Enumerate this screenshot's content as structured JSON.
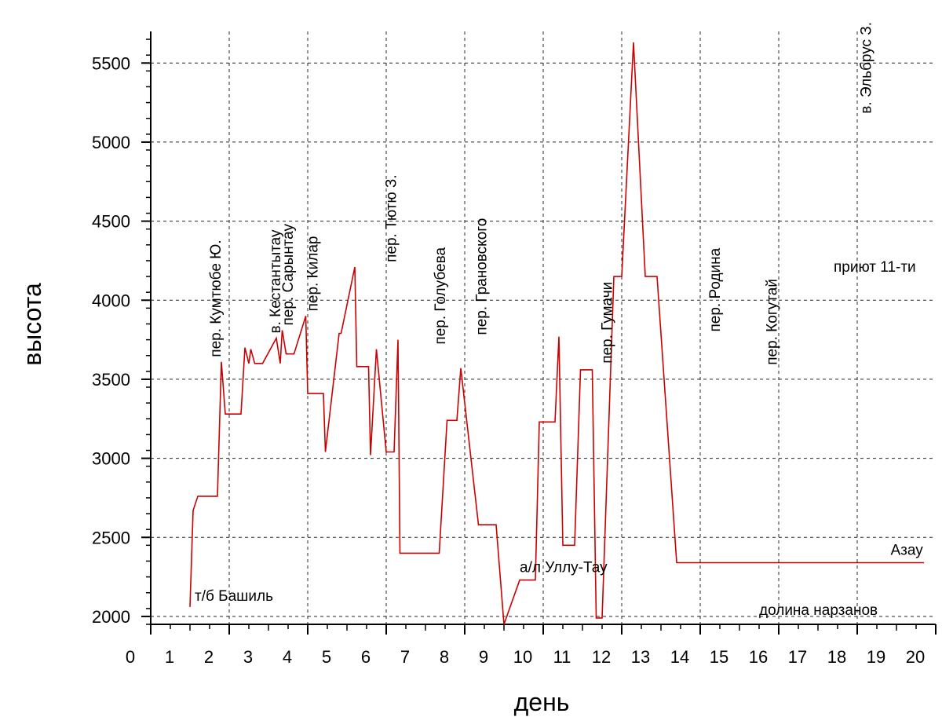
{
  "chart_data": {
    "type": "line",
    "xlabel": "день",
    "ylabel": "высота",
    "xlim": [
      0,
      20
    ],
    "ylim": [
      1950,
      5700
    ],
    "xticks": [
      "0",
      "1",
      "2",
      "3",
      "4",
      "5",
      "6",
      "7",
      "8",
      "9",
      "10",
      "11",
      "12",
      "13",
      "14",
      "15",
      "16",
      "17",
      "18",
      "19",
      "20"
    ],
    "yticks": [
      "2000",
      "2500",
      "3000",
      "3500",
      "4000",
      "4500",
      "5000",
      "5500"
    ],
    "grid": true,
    "line_color": "#cc0000",
    "series": [
      {
        "x": [
          1.0,
          1.08,
          1.2,
          1.7,
          1.8,
          1.9,
          2.3,
          2.4,
          2.5,
          2.55,
          2.65,
          2.7,
          2.75,
          2.85,
          3.2,
          3.3,
          3.35,
          3.45,
          3.55,
          3.65,
          3.95,
          4.0,
          4.1,
          4.4,
          4.45,
          4.8,
          4.85,
          5.2,
          5.25,
          5.55,
          5.6,
          5.75,
          6.0,
          6.15,
          6.2,
          6.3,
          6.35,
          6.7,
          6.8,
          6.85,
          7.35,
          7.55,
          7.8,
          7.9,
          8.35,
          8.8,
          9.0,
          9.4,
          9.8,
          9.9,
          10.3,
          10.4,
          10.5,
          10.8,
          10.95,
          11.25,
          11.35,
          11.5,
          11.8,
          12.0,
          12.3,
          12.6,
          12.9,
          13.4,
          14.0,
          14.2,
          14.3,
          14.55,
          14.6,
          15.0,
          15.1,
          15.5,
          15.75,
          16.0,
          16.05,
          16.25,
          16.4,
          16.5,
          16.75,
          17.1,
          17.6,
          17.75,
          18.05,
          18.2,
          18.6,
          19.05,
          19.35,
          19.5,
          19.7
        ],
        "y": [
          2060,
          2670,
          2760,
          2760,
          3610,
          3280,
          3280,
          3700,
          3600,
          3690,
          3600,
          3600,
          3600,
          3600,
          3760,
          3600,
          3810,
          3660,
          3660,
          3660,
          3900,
          3410,
          3410,
          3410,
          3040,
          3790,
          3790,
          4210,
          3580,
          3580,
          3020,
          3690,
          3040,
          3040,
          3040,
          3750,
          2400,
          2400,
          2400,
          2400,
          2400,
          3240,
          3240,
          3570,
          2580,
          2580,
          1950,
          2230,
          2230,
          3230,
          3230,
          3770,
          2450,
          2450,
          3560,
          3560,
          1990,
          1990,
          4150,
          4150,
          5630,
          4150,
          4150,
          2340,
          2340,
          2340,
          2340,
          2340,
          2340,
          2340,
          2340,
          2340,
          2340,
          2340,
          2340,
          2340,
          2340,
          2340,
          2340,
          2340,
          2340,
          2340,
          2340,
          2340,
          2340,
          2340,
          2340,
          2340,
          2340
        ]
      }
    ],
    "annotations": [
      {
        "text": "т/б Башиль",
        "x": 1.12,
        "y": 2100,
        "rotation": 0
      },
      {
        "text": "пер. Кумтюбе Ю.",
        "x": 1.78,
        "y": 3640,
        "rotation": -90
      },
      {
        "text": "в. Кестантытау",
        "x": 3.3,
        "y": 3790,
        "rotation": -90
      },
      {
        "text": "пер. Сарынтау",
        "x": 3.62,
        "y": 3840,
        "rotation": -90
      },
      {
        "text": "пер. Килар",
        "x": 4.25,
        "y": 3930,
        "rotation": -90
      },
      {
        "text": "пер. Тютю З.",
        "x": 6.25,
        "y": 4240,
        "rotation": -90
      },
      {
        "text": "пер. Голубева",
        "x": 7.5,
        "y": 3720,
        "rotation": -90
      },
      {
        "text": "пер. Грановского",
        "x": 8.55,
        "y": 3780,
        "rotation": -90
      },
      {
        "text": "а/л Уллу-Тау",
        "x": 9.4,
        "y": 2280,
        "rotation": 0
      },
      {
        "text": "пер. Гумачи",
        "x": 11.75,
        "y": 3600,
        "rotation": -90
      },
      {
        "text": "пер. Родина",
        "x": 14.5,
        "y": 3800,
        "rotation": -90
      },
      {
        "text": "пер. Когутай",
        "x": 15.95,
        "y": 3590,
        "rotation": -90
      },
      {
        "text": "долина нарзанов",
        "x": 15.5,
        "y": 2010,
        "rotation": 0
      },
      {
        "text": "в. Эльбрус З.",
        "x": 18.35,
        "y": 5180,
        "rotation": -90
      },
      {
        "text": "приют 11-ти",
        "x": 17.4,
        "y": 4180,
        "rotation": 0
      },
      {
        "text": "Азау",
        "x": 18.85,
        "y": 2390,
        "rotation": 0
      }
    ]
  }
}
